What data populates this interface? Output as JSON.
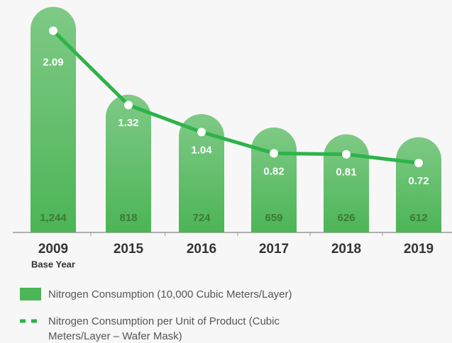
{
  "chart_data": {
    "type": "bar_line",
    "categories": [
      "2009",
      "2015",
      "2016",
      "2017",
      "2018",
      "2019"
    ],
    "annotations": [
      "Base Year"
    ],
    "series": [
      {
        "name": "Nitrogen Consumption (10,000 Cubic Meters/Layer)",
        "type": "bar",
        "color": "#4cb556",
        "values": [
          1244,
          818,
          724,
          659,
          626,
          612
        ],
        "value_labels": [
          "1,244",
          "818",
          "724",
          "659",
          "626",
          "612"
        ]
      },
      {
        "name": "Nitrogen Consumption per Unit of Product (Cubic Meters/Layer – Wafer Mask)",
        "type": "line",
        "axis": "y2",
        "color": "#2db34a",
        "values": [
          2.09,
          1.32,
          1.04,
          0.82,
          0.81,
          0.72
        ]
      }
    ],
    "ylim": [
      150,
      1250
    ],
    "y2lim": [
      0,
      2.35
    ]
  }
}
